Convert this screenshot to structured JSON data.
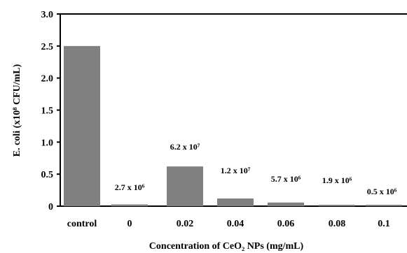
{
  "chart_data": {
    "type": "bar",
    "title": "",
    "xlabel": "Concentration of CeO₂ NPs (mg/mL)",
    "ylabel": "E. coli (x10⁸ CFU/mL)",
    "ylim": [
      0,
      3.0
    ],
    "yticks": [
      "0",
      "0.5",
      "1.0",
      "1.5",
      "2.0",
      "2.5",
      "3.0"
    ],
    "grid": false,
    "bar_color": "#808080",
    "categories": [
      "control",
      "0",
      "0.02",
      "0.04",
      "0.06",
      "0.08",
      "0.1"
    ],
    "values": [
      2.5,
      0.027,
      0.62,
      0.12,
      0.057,
      0.019,
      0.005
    ],
    "data_labels": [
      "",
      "2.7 x 10⁶",
      "6.2 x 10⁷",
      "1.2 x 10⁷",
      "5.7 x 10⁶",
      "1.9 x 10⁶",
      "0.5 x 10⁶"
    ]
  }
}
